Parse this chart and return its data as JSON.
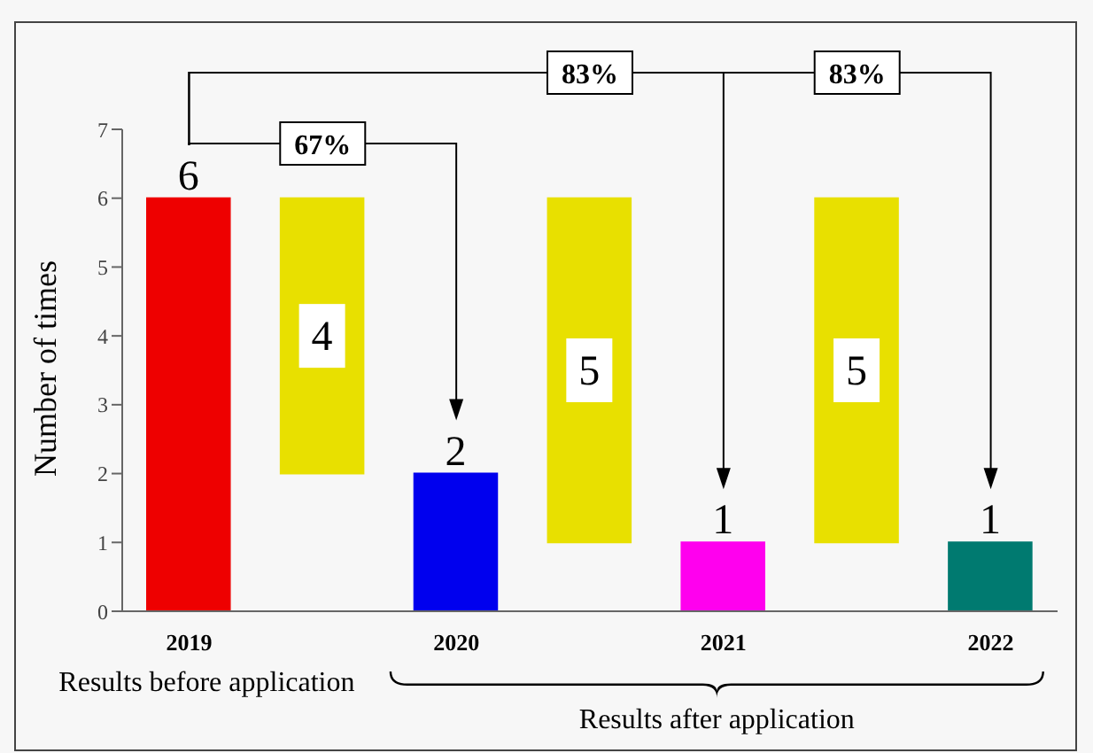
{
  "chart_data": {
    "type": "bar",
    "ylabel": "Number of times",
    "categories": [
      "2019",
      null,
      "2020",
      null,
      "2021",
      null,
      "2022"
    ],
    "values": [
      6,
      4,
      2,
      5,
      1,
      5,
      1
    ],
    "base": [
      0,
      2,
      0,
      1,
      0,
      1,
      0
    ],
    "colors": [
      "#ee0000",
      "#e8e000",
      "#0000ee",
      "#e8e000",
      "#ff00ee",
      "#e8e000",
      "#007a70"
    ],
    "ylim": [
      0,
      7
    ],
    "yticks": [
      0,
      1,
      2,
      3,
      4,
      5,
      6,
      7
    ],
    "grid": false,
    "legend": false,
    "data_labels": true,
    "annotations": [
      "67%",
      "83%",
      "83%",
      "Results before application",
      "Results after application"
    ]
  }
}
